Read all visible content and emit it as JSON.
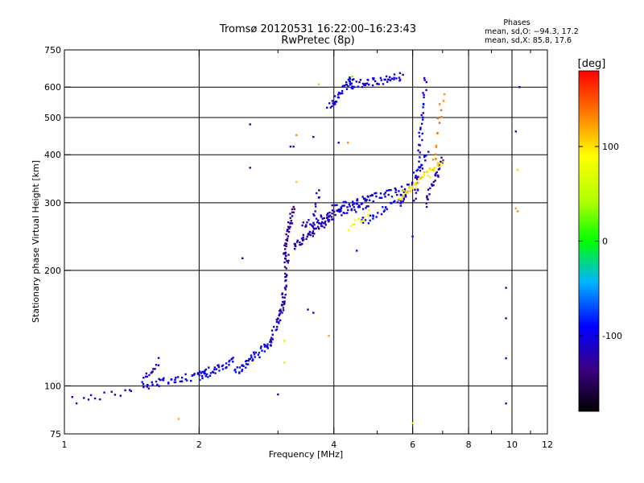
{
  "chart_data": {
    "type": "scatter",
    "title": "Tromsø 20120531 16:22:00–16:23:43",
    "subtitle": "RwPretec (8p)",
    "xlabel": "Frequency [MHz]",
    "ylabel": "Stationary phase Virtual Height [km]",
    "x_scale": "log",
    "y_scale": "log",
    "xlim": [
      1,
      12
    ],
    "ylim": [
      75,
      750
    ],
    "grid": true,
    "x_ticks": [
      1,
      2,
      4,
      6,
      8,
      10,
      12
    ],
    "x_tick_labels": [
      "1",
      "2",
      "4",
      "6",
      "8",
      "10",
      "12"
    ],
    "x_minor_ticks": [
      3,
      5,
      7,
      9,
      11
    ],
    "y_ticks": [
      75,
      100,
      200,
      300,
      400,
      500,
      600,
      750
    ],
    "y_tick_labels": [
      "75",
      "100",
      "200",
      "300",
      "400",
      "500",
      "600",
      "750"
    ],
    "annotation": {
      "title": "Phases",
      "lines": [
        "mean, sd,O: −94.3, 17.2",
        "mean, sd,X:  85.8, 17.6"
      ]
    },
    "colorbar": {
      "label": "[deg]",
      "range": [
        -180,
        180
      ],
      "ticks": [
        100,
        0,
        -100
      ],
      "tick_labels": [
        "100",
        "0",
        "-100"
      ]
    },
    "traces": [
      {
        "x": [
          1.05,
          1.42
        ],
        "y": [
          92,
          96
        ],
        "phase": -110,
        "n": 14
      },
      {
        "x": [
          1.5,
          1.62
        ],
        "y": [
          104,
          116
        ],
        "phase": -105,
        "n": 14
      },
      {
        "x": [
          1.5,
          2.1
        ],
        "y": [
          100,
          108
        ],
        "phase": -100,
        "n": 45
      },
      {
        "x": [
          2.0,
          2.4
        ],
        "y": [
          106,
          116
        ],
        "phase": -95,
        "n": 35
      },
      {
        "x": [
          2.4,
          2.9
        ],
        "y": [
          108,
          130
        ],
        "phase": -95,
        "n": 45
      },
      {
        "x": [
          2.9,
          3.05
        ],
        "y": [
          130,
          160
        ],
        "phase": -110,
        "n": 22
      },
      {
        "x": [
          3.05,
          3.15
        ],
        "y": [
          150,
          220
        ],
        "phase": -125,
        "n": 38
      },
      {
        "x": [
          3.1,
          3.25
        ],
        "y": [
          220,
          290
        ],
        "phase": -125,
        "n": 35
      },
      {
        "x": [
          3.25,
          4.0
        ],
        "y": [
          230,
          280
        ],
        "phase": -120,
        "n": 55
      },
      {
        "x": [
          3.4,
          4.8
        ],
        "y": [
          260,
          300
        ],
        "phase": -110,
        "n": 60
      },
      {
        "x": [
          4.0,
          5.8
        ],
        "y": [
          290,
          325
        ],
        "phase": -100,
        "n": 60
      },
      {
        "x": [
          4.6,
          5.8
        ],
        "y": [
          265,
          315
        ],
        "phase": -95,
        "n": 30
      },
      {
        "x": [
          5.6,
          6.5
        ],
        "y": [
          300,
          400
        ],
        "phase": -105,
        "n": 30
      },
      {
        "x": [
          6.1,
          6.4
        ],
        "y": [
          300,
          630
        ],
        "phase": -100,
        "n": 40
      },
      {
        "x": [
          6.4,
          7.0
        ],
        "y": [
          300,
          390
        ],
        "phase": -115,
        "n": 28
      },
      {
        "x": [
          5.6,
          7.0
        ],
        "y": [
          310,
          380
        ],
        "phase": 100,
        "n": 45
      },
      {
        "x": [
          4.3,
          4.8
        ],
        "y": [
          255,
          280
        ],
        "phase": 85,
        "n": 12
      },
      {
        "x": [
          6.7,
          7.0
        ],
        "y": [
          380,
          580
        ],
        "phase": 140,
        "n": 14
      },
      {
        "x": [
          3.9,
          4.4
        ],
        "y": [
          530,
          640
        ],
        "phase": -100,
        "n": 35
      },
      {
        "x": [
          4.3,
          5.7
        ],
        "y": [
          605,
          640
        ],
        "phase": -100,
        "n": 50
      },
      {
        "x": [
          3.6,
          3.7
        ],
        "y": [
          265,
          330
        ],
        "phase": -110,
        "n": 10
      }
    ],
    "points": [
      [
        1.8,
        82,
        120
      ],
      [
        2.5,
        215,
        -120
      ],
      [
        2.6,
        480,
        -110
      ],
      [
        3.0,
        95,
        -110
      ],
      [
        3.1,
        131,
        60
      ],
      [
        3.1,
        115,
        100
      ],
      [
        2.6,
        370,
        -100
      ],
      [
        3.2,
        420,
        -110
      ],
      [
        3.3,
        450,
        130
      ],
      [
        3.3,
        340,
        110
      ],
      [
        3.25,
        420,
        -100
      ],
      [
        3.6,
        445,
        -120
      ],
      [
        3.6,
        155,
        -100
      ],
      [
        3.5,
        158,
        -95
      ],
      [
        3.7,
        610,
        110
      ],
      [
        3.9,
        135,
        120
      ],
      [
        4.1,
        430,
        -100
      ],
      [
        4.3,
        430,
        130
      ],
      [
        4.5,
        225,
        -90
      ],
      [
        6.0,
        245,
        -100
      ],
      [
        6.0,
        80,
        50
      ],
      [
        9.7,
        90,
        -110
      ],
      [
        9.7,
        118,
        -110
      ],
      [
        9.7,
        150,
        -120
      ],
      [
        9.7,
        180,
        -120
      ],
      [
        10.3,
        285,
        130
      ],
      [
        10.2,
        290,
        120
      ],
      [
        10.3,
        365,
        50
      ],
      [
        10.2,
        460,
        -110
      ],
      [
        10.4,
        600,
        -100
      ],
      [
        4.4,
        640,
        30
      ],
      [
        5.9,
        330,
        40
      ]
    ]
  }
}
